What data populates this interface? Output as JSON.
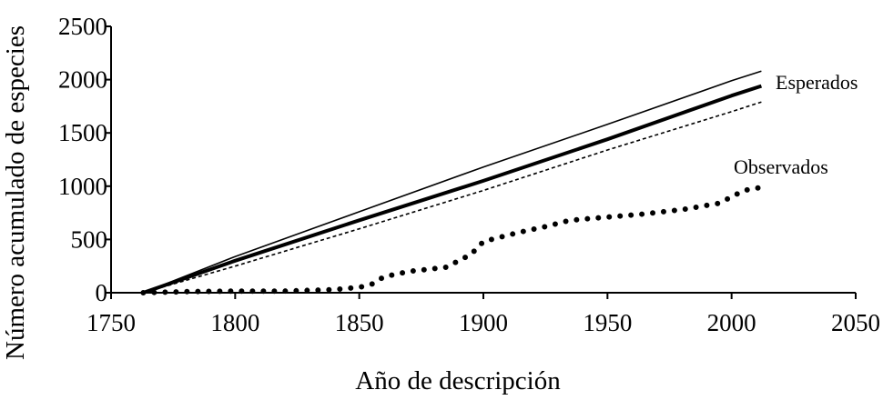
{
  "chart_data": {
    "type": "line",
    "xlabel": "Año de descripción",
    "ylabel": "Número acumulado de especies",
    "xlim": [
      1750,
      2050
    ],
    "ylim": [
      0,
      2500
    ],
    "x_ticks": [
      1750,
      1800,
      1850,
      1900,
      1950,
      2000,
      2050
    ],
    "y_ticks": [
      0,
      500,
      1000,
      1500,
      2000,
      2500
    ],
    "x_tick_labels": [
      "1750",
      "1800",
      "1850",
      "1900",
      "1950",
      "2000",
      "2050"
    ],
    "y_tick_labels": [
      "0",
      "500",
      "1000",
      "1500",
      "2000",
      "2500"
    ],
    "grid": false,
    "legend": "none",
    "annotations": [
      {
        "text": "Esperados",
        "target": "expected"
      },
      {
        "text": "Observados",
        "target": "observed"
      }
    ],
    "series": [
      {
        "id": "expected_upper",
        "style": "thin-solid",
        "x": [
          1763,
          1800,
          1850,
          1900,
          1950,
          2000,
          2012
        ],
        "y": [
          0,
          340,
          760,
          1180,
          1580,
          1990,
          2080
        ]
      },
      {
        "id": "expected_mean",
        "style": "thick-solid",
        "x": [
          1763,
          1800,
          1850,
          1900,
          1950,
          2000,
          2012
        ],
        "y": [
          0,
          300,
          680,
          1050,
          1440,
          1850,
          1940
        ]
      },
      {
        "id": "expected_lower",
        "style": "thin-dashed",
        "x": [
          1763,
          1800,
          1850,
          1900,
          1950,
          2000,
          2012
        ],
        "y": [
          0,
          250,
          600,
          960,
          1340,
          1700,
          1790
        ]
      },
      {
        "id": "observed",
        "style": "thick-dotted",
        "x": [
          1763,
          1780,
          1800,
          1820,
          1840,
          1850,
          1855,
          1860,
          1870,
          1885,
          1895,
          1900,
          1905,
          1915,
          1925,
          1935,
          1950,
          1965,
          1980,
          1995,
          2000,
          2005,
          2012
        ],
        "y": [
          0,
          10,
          15,
          15,
          30,
          50,
          80,
          150,
          200,
          240,
          360,
          480,
          510,
          570,
          620,
          680,
          710,
          740,
          780,
          840,
          900,
          960,
          990
        ]
      }
    ]
  }
}
